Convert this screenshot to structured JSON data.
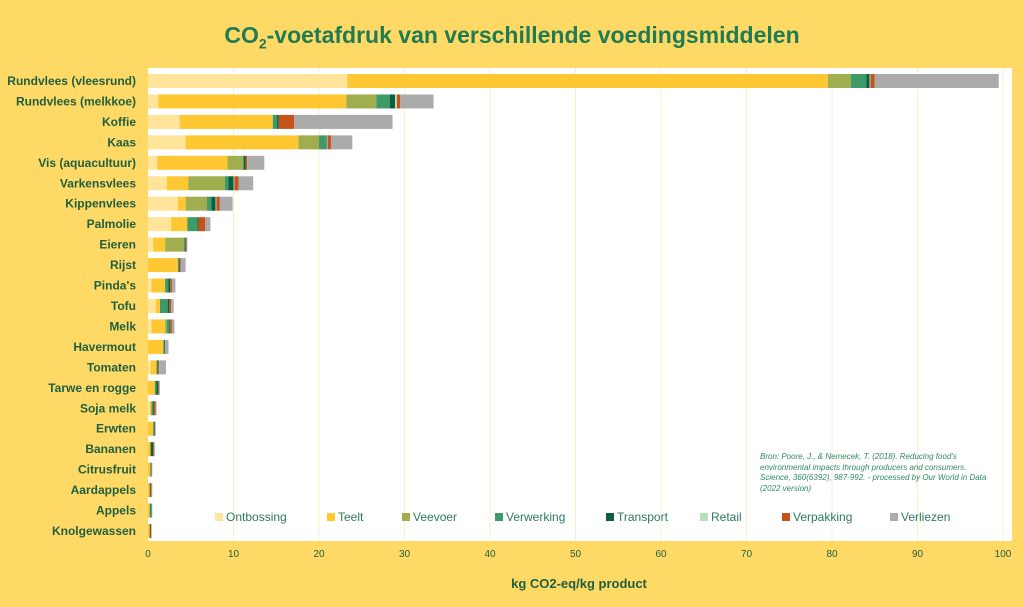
{
  "title_prefix": "CO",
  "title_sub": "2",
  "title_suffix": "-voetafdruk van verschillende voedingsmiddelen",
  "source": "Bron: Poore, J., & Nemecek, T. (2018). Reducing food's environmental impacts through producers and consumers. Science, 360(6392), 987-992. - processed by Our World in Data (2022 version)",
  "chart_data": {
    "type": "bar",
    "orientation": "horizontal",
    "stacked": true,
    "xlabel": "kg CO2-eq/kg product",
    "xlim": [
      0,
      100
    ],
    "xticks": [
      0,
      10,
      20,
      30,
      40,
      50,
      60,
      70,
      80,
      90,
      100
    ],
    "grid": true,
    "legend_position": "bottom",
    "categories": [
      "Rundvlees (vleesrund)",
      "Rundvlees (melkkoe)",
      "Koffie",
      "Kaas",
      "Vis (aquacultuur)",
      "Varkensvlees",
      "Kippenvlees",
      "Palmolie",
      "Eieren",
      "Rijst",
      "Pinda's",
      "Tofu",
      "Melk",
      "Havermout",
      "Tomaten",
      "Tarwe en rogge",
      "Soja melk",
      "Erwten",
      "Bananen",
      "Citrusfruit",
      "Aardappels",
      "Appels",
      "Knolgewassen"
    ],
    "series": [
      {
        "name": "Ontbossing",
        "color": "#FFE49A",
        "values": [
          23.3,
          1.2,
          3.7,
          4.4,
          1.1,
          2.2,
          3.5,
          2.7,
          0.6,
          0,
          0.4,
          0.9,
          0.4,
          0,
          0.3,
          0,
          0.2,
          0,
          0,
          0,
          0,
          0,
          0
        ]
      },
      {
        "name": "Teelt",
        "color": "#FFC832",
        "values": [
          56.2,
          22.0,
          10.9,
          13.2,
          8.2,
          2.5,
          0.9,
          1.9,
          1.4,
          3.5,
          1.6,
          0.5,
          1.6,
          1.8,
          0.7,
          0.8,
          0.2,
          0.6,
          0.3,
          0.3,
          0.2,
          0.2,
          0.2
        ]
      },
      {
        "name": "Veevoer",
        "color": "#A1AE4E",
        "values": [
          2.7,
          3.5,
          0,
          2.4,
          1.8,
          4.3,
          2.5,
          0,
          2.2,
          0,
          0,
          0,
          0.2,
          0,
          0,
          0,
          0,
          0,
          0,
          0,
          0,
          0,
          0
        ]
      },
      {
        "name": "Verwerking",
        "color": "#3E9A67",
        "values": [
          1.8,
          1.6,
          0.5,
          0.8,
          0.1,
          0.4,
          0.5,
          1.2,
          0.1,
          0.1,
          0.4,
          0.9,
          0.3,
          0.1,
          0.1,
          0.2,
          0.2,
          0.1,
          0,
          0,
          0,
          0.1,
          0
        ]
      },
      {
        "name": "Transport",
        "color": "#0B5E3F",
        "values": [
          0.4,
          0.6,
          0.2,
          0.1,
          0.2,
          0.6,
          0.5,
          0.1,
          0.1,
          0.1,
          0.2,
          0.2,
          0.1,
          0.1,
          0.1,
          0.2,
          0.1,
          0.1,
          0.3,
          0.1,
          0.1,
          0.1,
          0.1
        ]
      },
      {
        "name": "Retail",
        "color": "#B5E0C0",
        "values": [
          0.1,
          0.2,
          0,
          0.1,
          0,
          0.1,
          0.1,
          0,
          0,
          0,
          0,
          0,
          0,
          0,
          0,
          0,
          0,
          0,
          0,
          0,
          0,
          0,
          0
        ]
      },
      {
        "name": "Verpakking",
        "color": "#C5531A",
        "values": [
          0.5,
          0.4,
          1.8,
          0.4,
          0.2,
          0.5,
          0.4,
          0.8,
          0.1,
          0.1,
          0.2,
          0.2,
          0.2,
          0,
          0.1,
          0.1,
          0.2,
          0,
          0.1,
          0,
          0.1,
          0,
          0.1
        ]
      },
      {
        "name": "Verliezen",
        "color": "#ABABAB",
        "values": [
          14.5,
          3.9,
          11.5,
          2.5,
          2.0,
          1.7,
          1.5,
          0.6,
          0.1,
          0.6,
          0.4,
          0.3,
          0.3,
          0.4,
          0.8,
          0.1,
          0.1,
          0.1,
          0.1,
          0.1,
          0.1,
          0.1,
          0
        ]
      }
    ]
  }
}
